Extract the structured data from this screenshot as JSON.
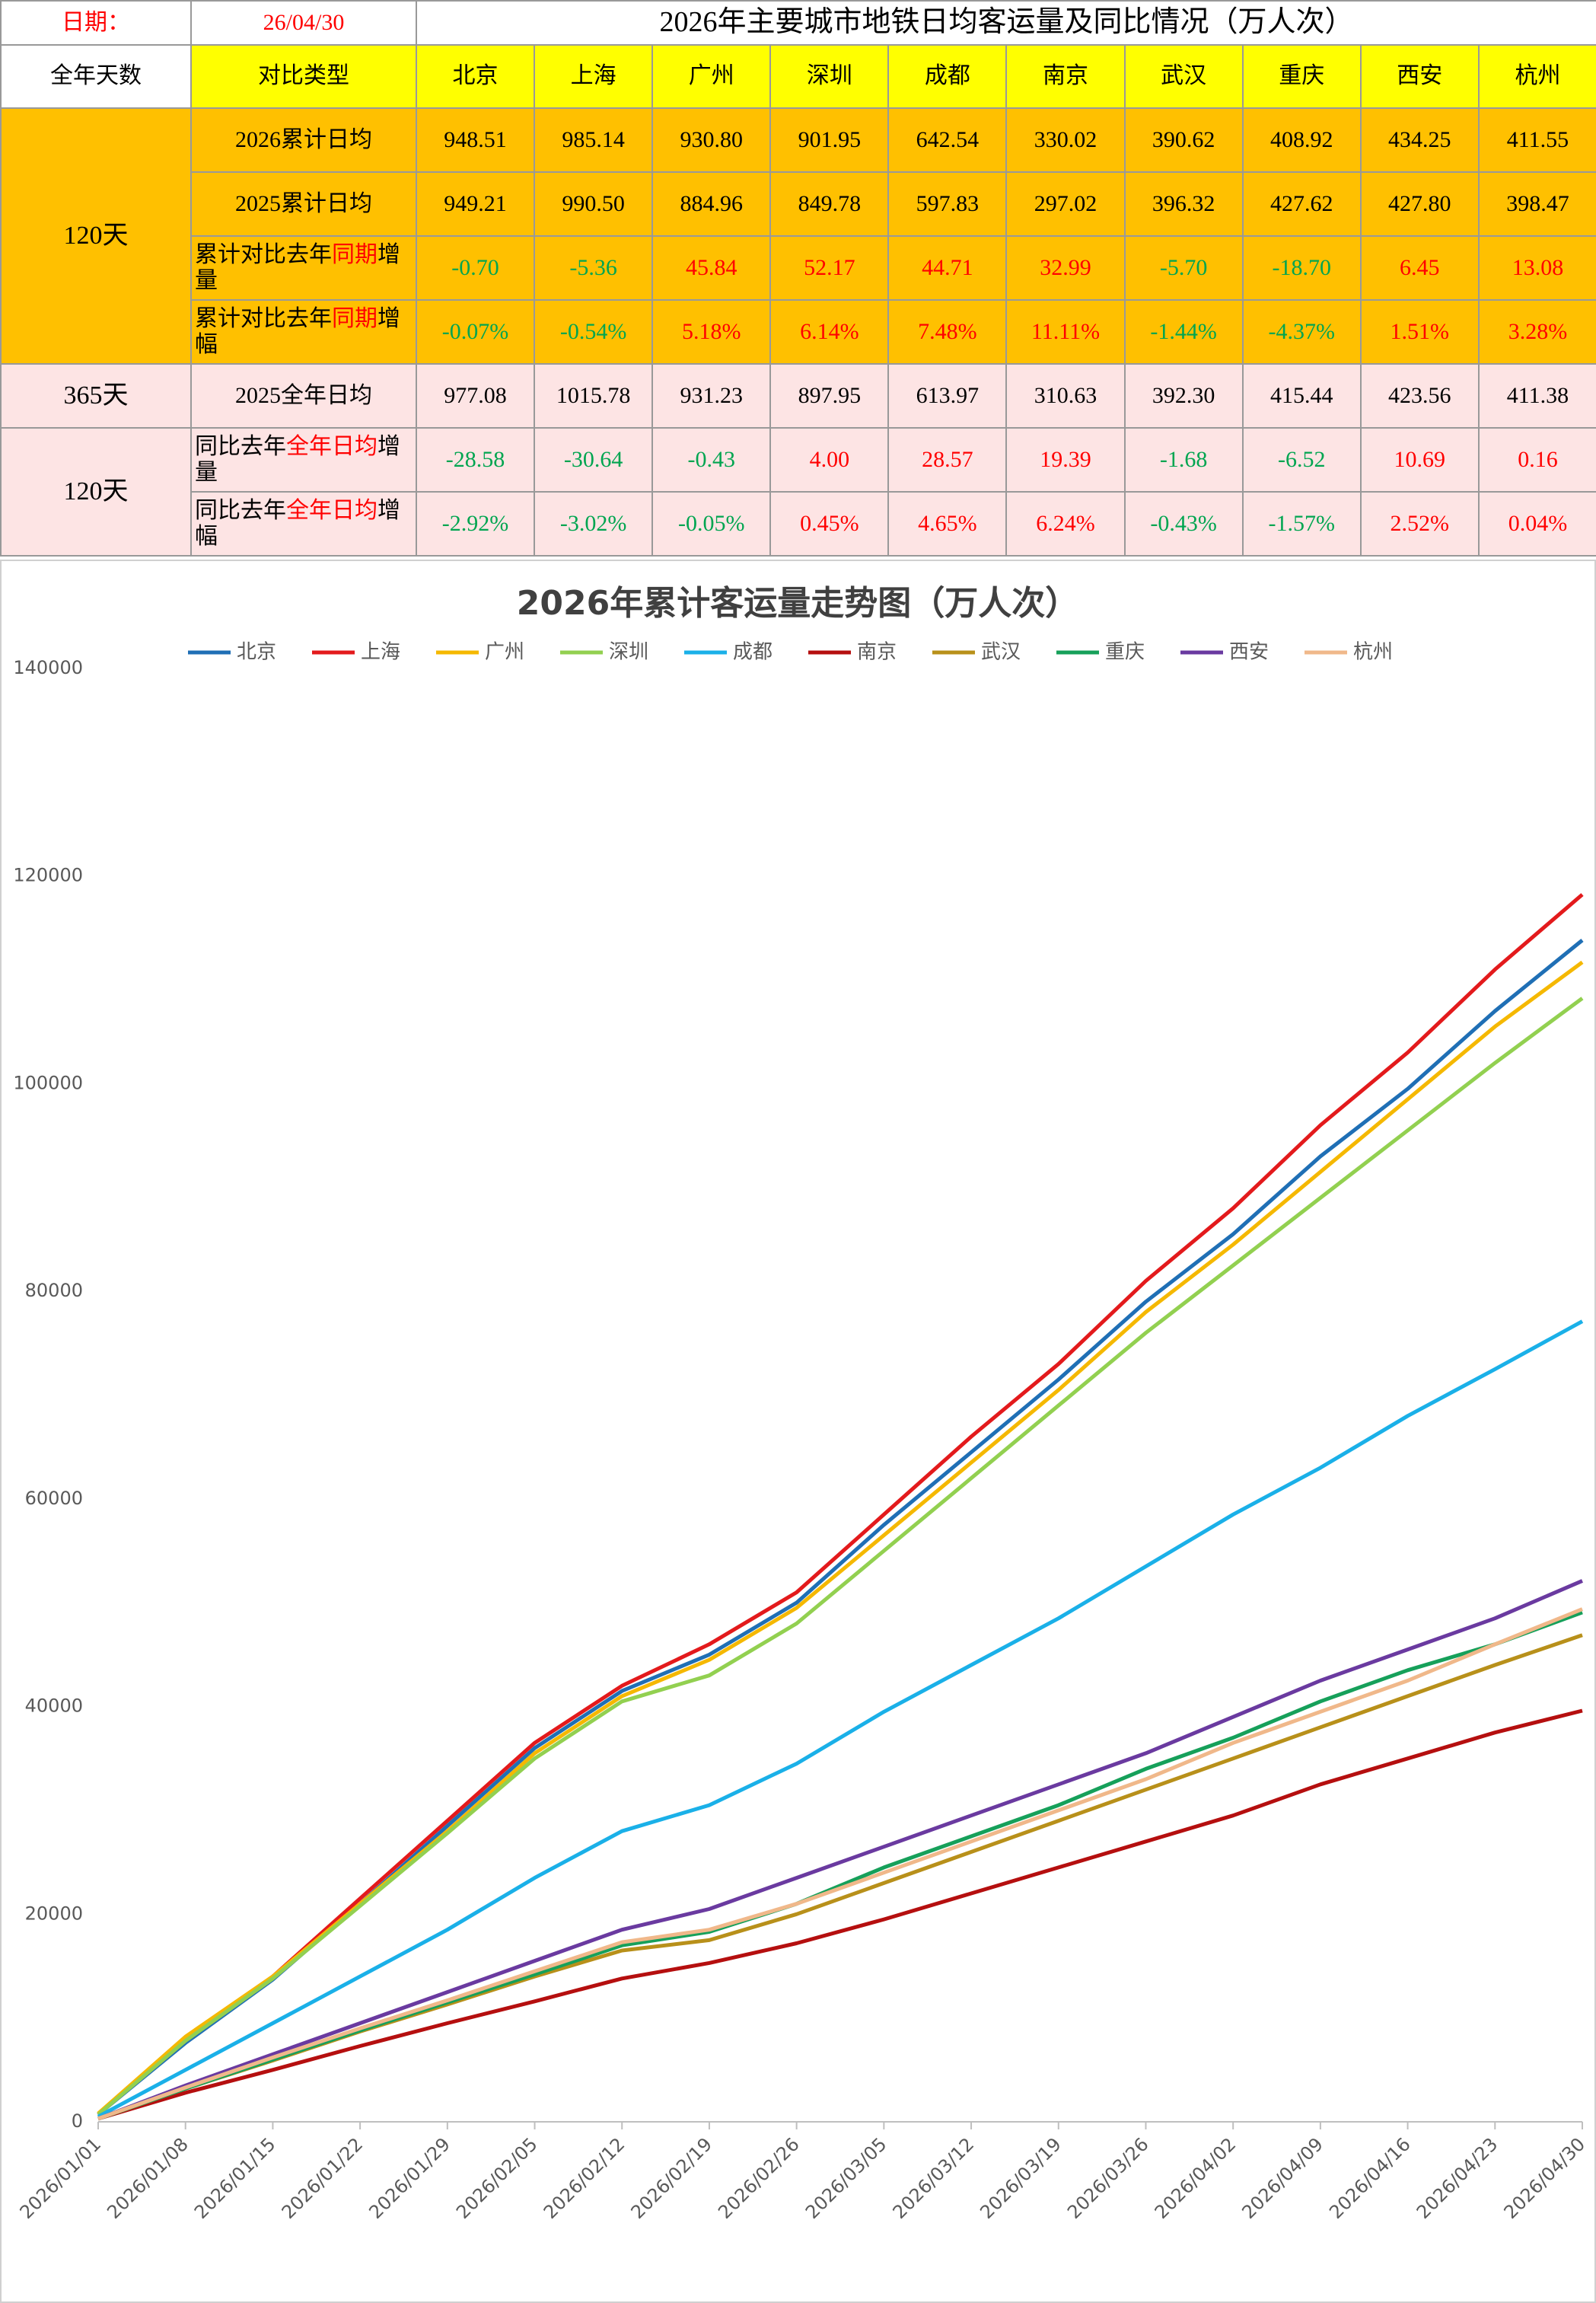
{
  "table": {
    "date_label": "日期：",
    "date": "26/04/30",
    "title": "2026年主要城市地铁日均客运量及同比情况（万人次）",
    "header": {
      "days": "全年天数",
      "type": "对比类型",
      "cities": [
        "北京",
        "上海",
        "广州",
        "深圳",
        "成都",
        "南京",
        "武汉",
        "重庆",
        "西安",
        "杭州"
      ]
    },
    "positive_color": "#ff0000",
    "negative_color": "#00a550",
    "groups": [
      {
        "label": "120天",
        "color": "#ffc000",
        "rows": [
          {
            "type": [
              "2026累计日均"
            ],
            "signed": false,
            "values": [
              "948.51",
              "985.14",
              "930.80",
              "901.95",
              "642.54",
              "330.02",
              "390.62",
              "408.92",
              "434.25",
              "411.55"
            ]
          },
          {
            "type": [
              "2025累计日均"
            ],
            "signed": false,
            "values": [
              "949.21",
              "990.50",
              "884.96",
              "849.78",
              "597.83",
              "297.02",
              "396.32",
              "427.62",
              "427.80",
              "398.47"
            ]
          },
          {
            "type": [
              "累计对比去年",
              "同期",
              "增量"
            ],
            "signed": true,
            "values": [
              "-0.70",
              "-5.36",
              "45.84",
              "52.17",
              "44.71",
              "32.99",
              "-5.70",
              "-18.70",
              "6.45",
              "13.08"
            ]
          },
          {
            "type": [
              "累计对比去年",
              "同期",
              "增幅"
            ],
            "signed": true,
            "values": [
              "-0.07%",
              "-0.54%",
              "5.18%",
              "6.14%",
              "7.48%",
              "11.11%",
              "-1.44%",
              "-4.37%",
              "1.51%",
              "3.28%"
            ]
          }
        ]
      },
      {
        "label": "365天",
        "color": "#fde4e4",
        "rows": [
          {
            "type": [
              "2025全年日均"
            ],
            "signed": false,
            "values": [
              "977.08",
              "1015.78",
              "931.23",
              "897.95",
              "613.97",
              "310.63",
              "392.30",
              "415.44",
              "423.56",
              "411.38"
            ]
          }
        ]
      },
      {
        "label": "120天",
        "color": "#fde4e4",
        "rows": [
          {
            "type": [
              "同比去年",
              "全年日均",
              "增量"
            ],
            "signed": true,
            "values": [
              "-28.58",
              "-30.64",
              "-0.43",
              "4.00",
              "28.57",
              "19.39",
              "-1.68",
              "-6.52",
              "10.69",
              "0.16"
            ]
          },
          {
            "type": [
              "同比去年",
              "全年日均",
              "增幅"
            ],
            "signed": true,
            "values": [
              "-2.92%",
              "-3.02%",
              "-0.05%",
              "0.45%",
              "4.65%",
              "6.24%",
              "-0.43%",
              "-1.57%",
              "2.52%",
              "0.04%"
            ]
          }
        ]
      }
    ]
  },
  "chart_data": {
    "type": "line",
    "title": "2026年累计客运量走势图（万人次）",
    "x": [
      "2026/01/01",
      "2026/01/08",
      "2026/01/15",
      "2026/01/22",
      "2026/01/29",
      "2026/02/05",
      "2026/02/12",
      "2026/02/19",
      "2026/02/26",
      "2026/03/05",
      "2026/03/12",
      "2026/03/19",
      "2026/03/26",
      "2026/04/02",
      "2026/04/09",
      "2026/04/16",
      "2026/04/23",
      "2026/04/30"
    ],
    "ylim": [
      0,
      140000
    ],
    "yticks": [
      0,
      20000,
      40000,
      60000,
      80000,
      100000,
      120000,
      140000
    ],
    "grid": false,
    "series": [
      {
        "name": "北京",
        "color": "#1f6fb5",
        "values": [
          700,
          7600,
          13700,
          21000,
          28500,
          36000,
          41500,
          45000,
          50000,
          57500,
          64500,
          71500,
          79000,
          85500,
          93000,
          99500,
          107000,
          113821
        ]
      },
      {
        "name": "上海",
        "color": "#e31a1c",
        "values": [
          700,
          8000,
          14000,
          21500,
          29000,
          36500,
          42000,
          46000,
          51000,
          58500,
          66000,
          73000,
          81000,
          88000,
          96000,
          103000,
          111000,
          118217
        ]
      },
      {
        "name": "广州",
        "color": "#f5b800",
        "values": [
          800,
          8200,
          14000,
          21000,
          28000,
          35500,
          41000,
          44500,
          49500,
          56500,
          63500,
          70500,
          78000,
          84500,
          91500,
          98500,
          105500,
          111696
        ]
      },
      {
        "name": "深圳",
        "color": "#92d050",
        "values": [
          700,
          7800,
          13800,
          20800,
          27800,
          35000,
          40500,
          43000,
          48000,
          55000,
          62000,
          69000,
          76000,
          82500,
          89000,
          95500,
          102000,
          108234
        ]
      },
      {
        "name": "成都",
        "color": "#1ab0e8",
        "values": [
          500,
          5000,
          9500,
          14000,
          18500,
          23500,
          28000,
          30500,
          34500,
          39500,
          44000,
          48500,
          53500,
          58500,
          63000,
          68000,
          72500,
          77105
        ]
      },
      {
        "name": "南京",
        "color": "#b50f0f",
        "values": [
          300,
          2800,
          5000,
          7300,
          9500,
          11600,
          13800,
          15300,
          17200,
          19500,
          22000,
          24500,
          27000,
          29500,
          32500,
          35000,
          37500,
          39602
        ]
      },
      {
        "name": "武汉",
        "color": "#b8901a",
        "values": [
          300,
          3200,
          5900,
          8700,
          11300,
          14000,
          16500,
          17500,
          20000,
          23000,
          26000,
          29000,
          32000,
          35000,
          38000,
          41000,
          44000,
          46874
        ]
      },
      {
        "name": "重庆",
        "color": "#16a05a",
        "values": [
          300,
          3200,
          6000,
          8800,
          11500,
          14200,
          17000,
          18300,
          21000,
          24500,
          27500,
          30500,
          34000,
          37000,
          40500,
          43500,
          46000,
          49070
        ]
      },
      {
        "name": "西安",
        "color": "#6a3aa0",
        "values": [
          300,
          3500,
          6500,
          9500,
          12500,
          15500,
          18500,
          20500,
          23500,
          26500,
          29500,
          32500,
          35500,
          39000,
          42500,
          45500,
          48500,
          52110
        ]
      },
      {
        "name": "杭州",
        "color": "#f0b88a",
        "values": [
          300,
          3300,
          6200,
          9000,
          11700,
          14500,
          17300,
          18500,
          21000,
          24000,
          27000,
          30000,
          33000,
          36500,
          39500,
          42500,
          46000,
          49386
        ]
      }
    ]
  }
}
